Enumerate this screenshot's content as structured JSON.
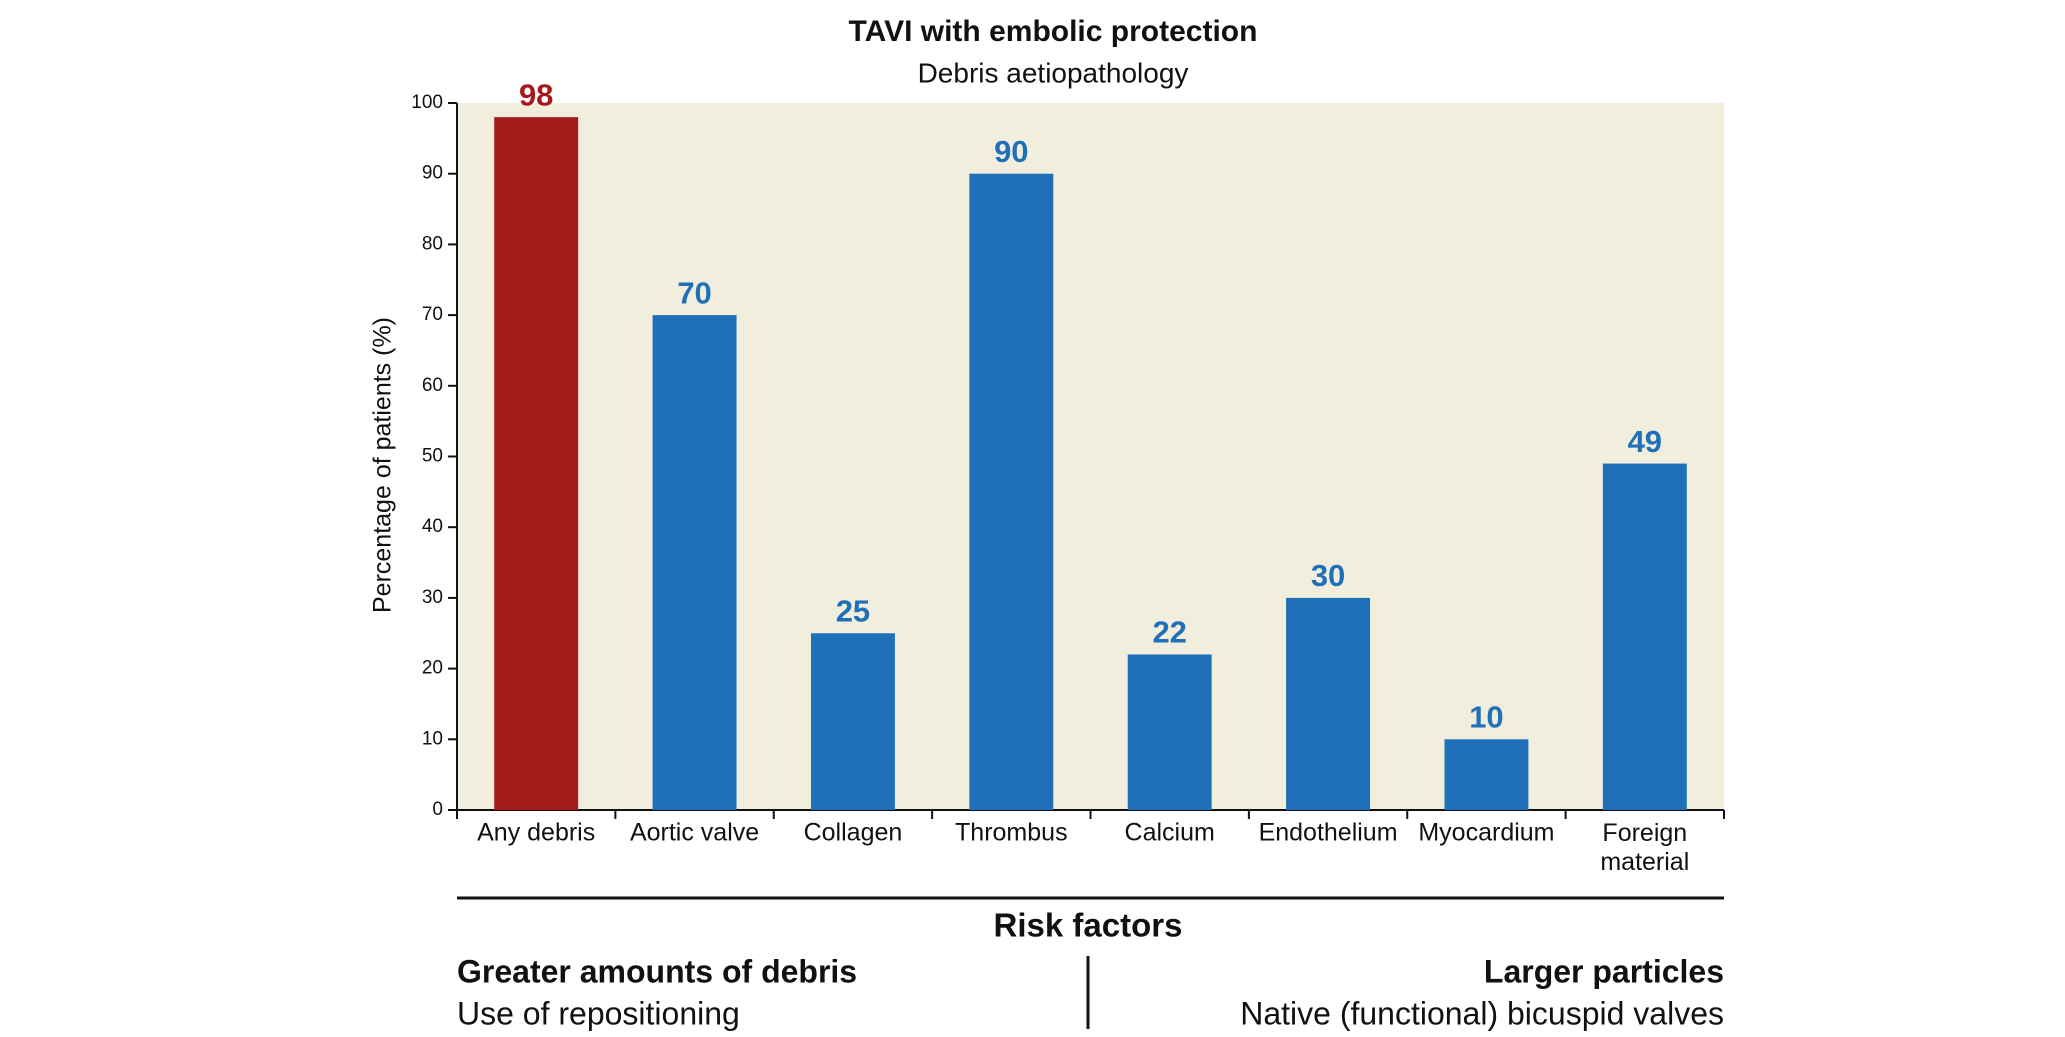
{
  "chart_data": {
    "type": "bar",
    "title": "TAVI with embolic protection",
    "subtitle": "Debris aetiopathology",
    "y_label": "Percentage of patients (%)",
    "categories": [
      "Any debris",
      "Aortic valve",
      "Collagen",
      "Thrombus",
      "Calcium",
      "Endothelium",
      "Myocardium",
      "Foreign material"
    ],
    "values": [
      98,
      70,
      25,
      90,
      22,
      30,
      10,
      49
    ],
    "colors": [
      "#a51b1b",
      "#1f70b8",
      "#1f70b8",
      "#1f70b8",
      "#1f70b8",
      "#1f70b8",
      "#1f70b8",
      "#1f70b8"
    ],
    "ylim": [
      0,
      100
    ],
    "yticks": [
      0,
      10,
      20,
      30,
      40,
      50,
      60,
      70,
      80,
      90,
      100
    ],
    "plot_background": "#f1eedd"
  },
  "risk_factors": {
    "title": "Risk factors",
    "left": {
      "heading": "Greater amounts of debris",
      "item": "Use of repositioning"
    },
    "right": {
      "heading": "Larger particles",
      "item": "Native (functional) bicuspid valves"
    }
  }
}
